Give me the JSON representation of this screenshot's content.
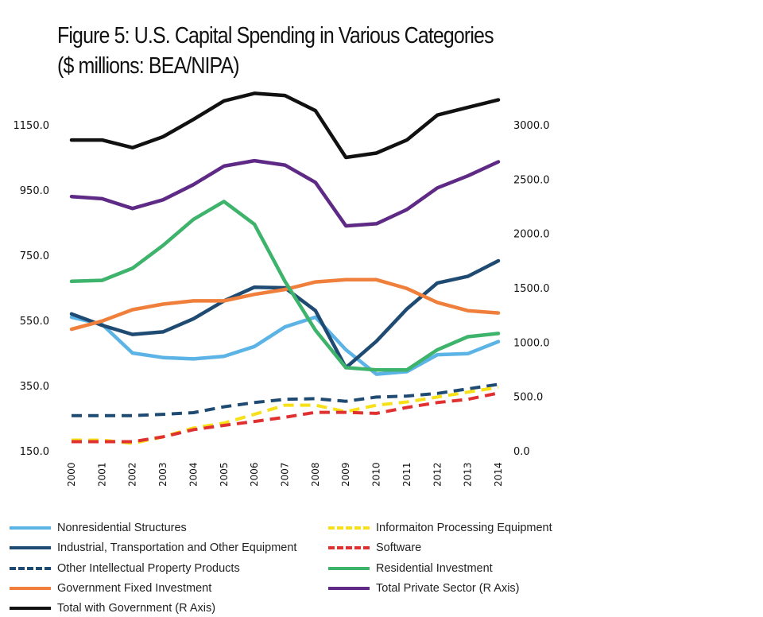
{
  "chart_data": {
    "type": "line",
    "title": "Figure 5: U.S. Capital Spending in Various Categories",
    "subtitle": "($ millions: BEA/NIPA)",
    "x": [
      "2000",
      "2001",
      "2002",
      "2003",
      "2004",
      "2005",
      "2006",
      "2007",
      "2008",
      "2009",
      "2010",
      "2011",
      "2012",
      "2013",
      "2014"
    ],
    "y_left": {
      "min": 150,
      "max": 1150,
      "ticks": [
        "150.0",
        "350.0",
        "550.0",
        "750.0",
        "950.0",
        "1150.0"
      ]
    },
    "y_right": {
      "min": 0,
      "max": 3000,
      "ticks": [
        "0.0",
        "500.0",
        "1000.0",
        "1500.0",
        "2000.0",
        "2500.0",
        "3000.0"
      ]
    },
    "series": [
      {
        "name": "Nonresidential Structures",
        "axis": "left",
        "color": "#5bb3e6",
        "dash": false,
        "values": [
          560,
          538,
          450,
          436,
          432,
          440,
          470,
          530,
          560,
          460,
          385,
          393,
          445,
          448,
          485
        ]
      },
      {
        "name": "Industrial, Transportation and Other Equipment",
        "axis": "left",
        "color": "#1f4b73",
        "dash": false,
        "values": [
          570,
          535,
          507,
          515,
          555,
          610,
          652,
          650,
          580,
          405,
          486,
          585,
          665,
          685,
          733
        ]
      },
      {
        "name": "Other Intellectual Property Products",
        "axis": "left",
        "color": "#1f4b73",
        "dash": true,
        "values": [
          258,
          258,
          258,
          262,
          267,
          285,
          298,
          308,
          310,
          302,
          315,
          318,
          326,
          340,
          354
        ]
      },
      {
        "name": "Government Fixed Investment",
        "axis": "left",
        "color": "#ef7f3a",
        "dash": false,
        "values": [
          523,
          548,
          583,
          600,
          610,
          610,
          630,
          645,
          668,
          675,
          675,
          648,
          605,
          580,
          573
        ]
      },
      {
        "name": "Total with Government (R Axis)",
        "axis": "right",
        "color": "#111111",
        "dash": false,
        "values": [
          2860,
          2860,
          2790,
          2890,
          3050,
          3220,
          3290,
          3270,
          3130,
          2700,
          2740,
          2860,
          3090,
          3160,
          3230
        ]
      },
      {
        "name": "Informaiton Processing Equipment",
        "axis": "left",
        "color": "#f7e017",
        "dash": true,
        "values": [
          183,
          183,
          173,
          193,
          220,
          235,
          262,
          290,
          290,
          270,
          290,
          300,
          315,
          330,
          345
        ]
      },
      {
        "name": "Software",
        "axis": "left",
        "color": "#e03030",
        "dash": true,
        "values": [
          178,
          178,
          178,
          193,
          215,
          228,
          240,
          253,
          268,
          268,
          265,
          283,
          298,
          308,
          327
        ]
      },
      {
        "name": "Residential Investment",
        "axis": "left",
        "color": "#3db36b",
        "dash": false,
        "values": [
          670,
          673,
          710,
          780,
          860,
          915,
          845,
          670,
          520,
          405,
          398,
          398,
          460,
          500,
          510
        ]
      },
      {
        "name": "Total Private Sector (R Axis)",
        "axis": "right",
        "color": "#5e2a86",
        "dash": false,
        "values": [
          2340,
          2320,
          2230,
          2310,
          2450,
          2620,
          2670,
          2630,
          2470,
          2070,
          2090,
          2220,
          2420,
          2530,
          2660
        ]
      }
    ],
    "legend_position": "bottom"
  }
}
